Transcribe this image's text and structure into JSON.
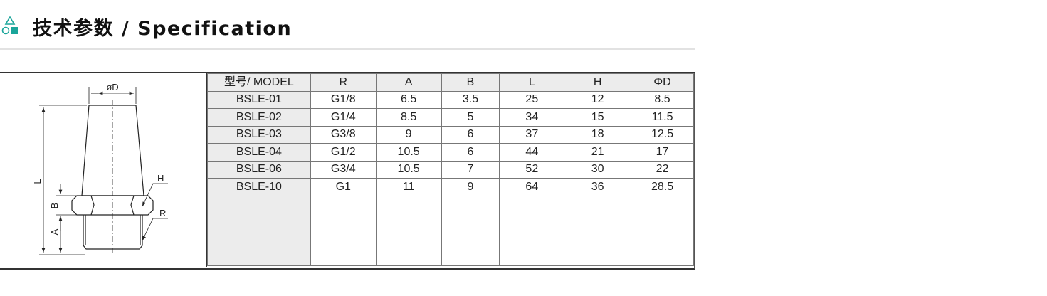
{
  "header": {
    "title": "技术参数 / Specification",
    "icon": "shapes-icon",
    "accent": "#1aa59a"
  },
  "drawing": {
    "labels": {
      "diameter": "øD",
      "length": "L",
      "hex": "H",
      "thread": "R",
      "b": "B",
      "a": "A"
    }
  },
  "table": {
    "columns": [
      "型号/ MODEL",
      "R",
      "A",
      "B",
      "L",
      "H",
      "ΦD"
    ],
    "rows": [
      [
        "BSLE-01",
        "G1/8",
        "6.5",
        "3.5",
        "25",
        "12",
        "8.5"
      ],
      [
        "BSLE-02",
        "G1/4",
        "8.5",
        "5",
        "34",
        "15",
        "11.5"
      ],
      [
        "BSLE-03",
        "G3/8",
        "9",
        "6",
        "37",
        "18",
        "12.5"
      ],
      [
        "BSLE-04",
        "G1/2",
        "10.5",
        "6",
        "44",
        "21",
        "17"
      ],
      [
        "BSLE-06",
        "G3/4",
        "10.5",
        "7",
        "52",
        "30",
        "22"
      ],
      [
        "BSLE-10",
        "G1",
        "11",
        "9",
        "64",
        "36",
        "28.5"
      ],
      [
        "",
        "",
        "",
        "",
        "",
        "",
        ""
      ],
      [
        "",
        "",
        "",
        "",
        "",
        "",
        ""
      ],
      [
        "",
        "",
        "",
        "",
        "",
        "",
        ""
      ],
      [
        "",
        "",
        "",
        "",
        "",
        "",
        ""
      ]
    ]
  }
}
